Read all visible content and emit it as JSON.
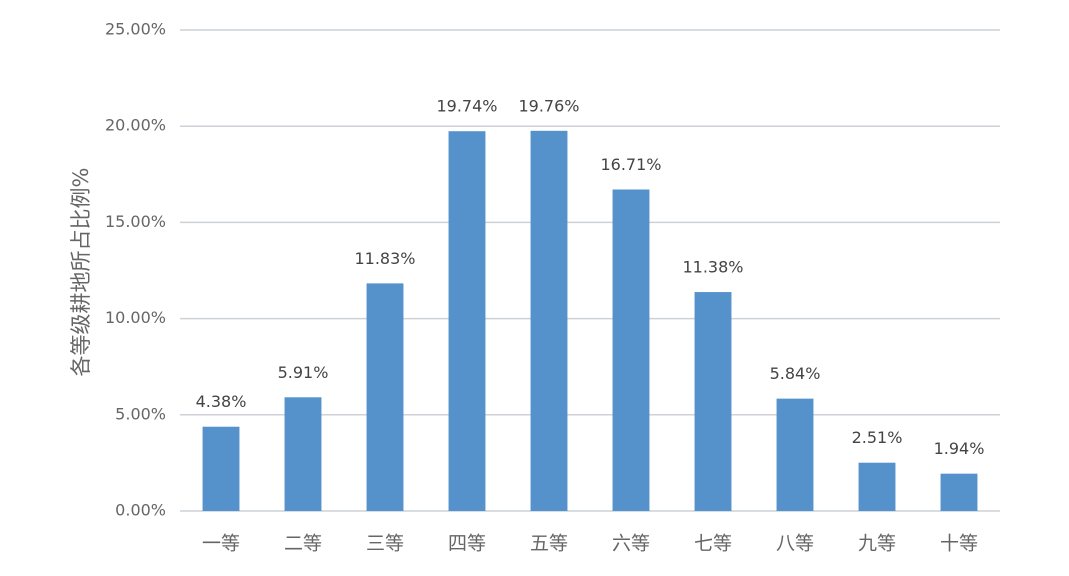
{
  "chart_data": {
    "type": "bar",
    "y_axis_label": "各等级耕地所占比例%",
    "categories": [
      "一等",
      "二等",
      "三等",
      "四等",
      "五等",
      "六等",
      "七等",
      "八等",
      "九等",
      "十等"
    ],
    "values": [
      4.38,
      5.91,
      11.83,
      19.74,
      19.76,
      16.71,
      11.38,
      5.84,
      2.51,
      1.94
    ],
    "value_labels": [
      "4.38%",
      "5.91%",
      "11.83%",
      "19.74%",
      "19.76%",
      "16.71%",
      "11.38%",
      "5.84%",
      "2.51%",
      "1.94%"
    ],
    "color": "#5592cb",
    "ylim": [
      0,
      25
    ],
    "yticks": [
      {
        "value": 0,
        "label": "0.00%"
      },
      {
        "value": 5,
        "label": "5.00%"
      },
      {
        "value": 10,
        "label": "10.00%"
      },
      {
        "value": 15,
        "label": "15.00%"
      },
      {
        "value": 20,
        "label": "20.00%"
      },
      {
        "value": 25,
        "label": "25.00%"
      }
    ],
    "grid": true
  }
}
